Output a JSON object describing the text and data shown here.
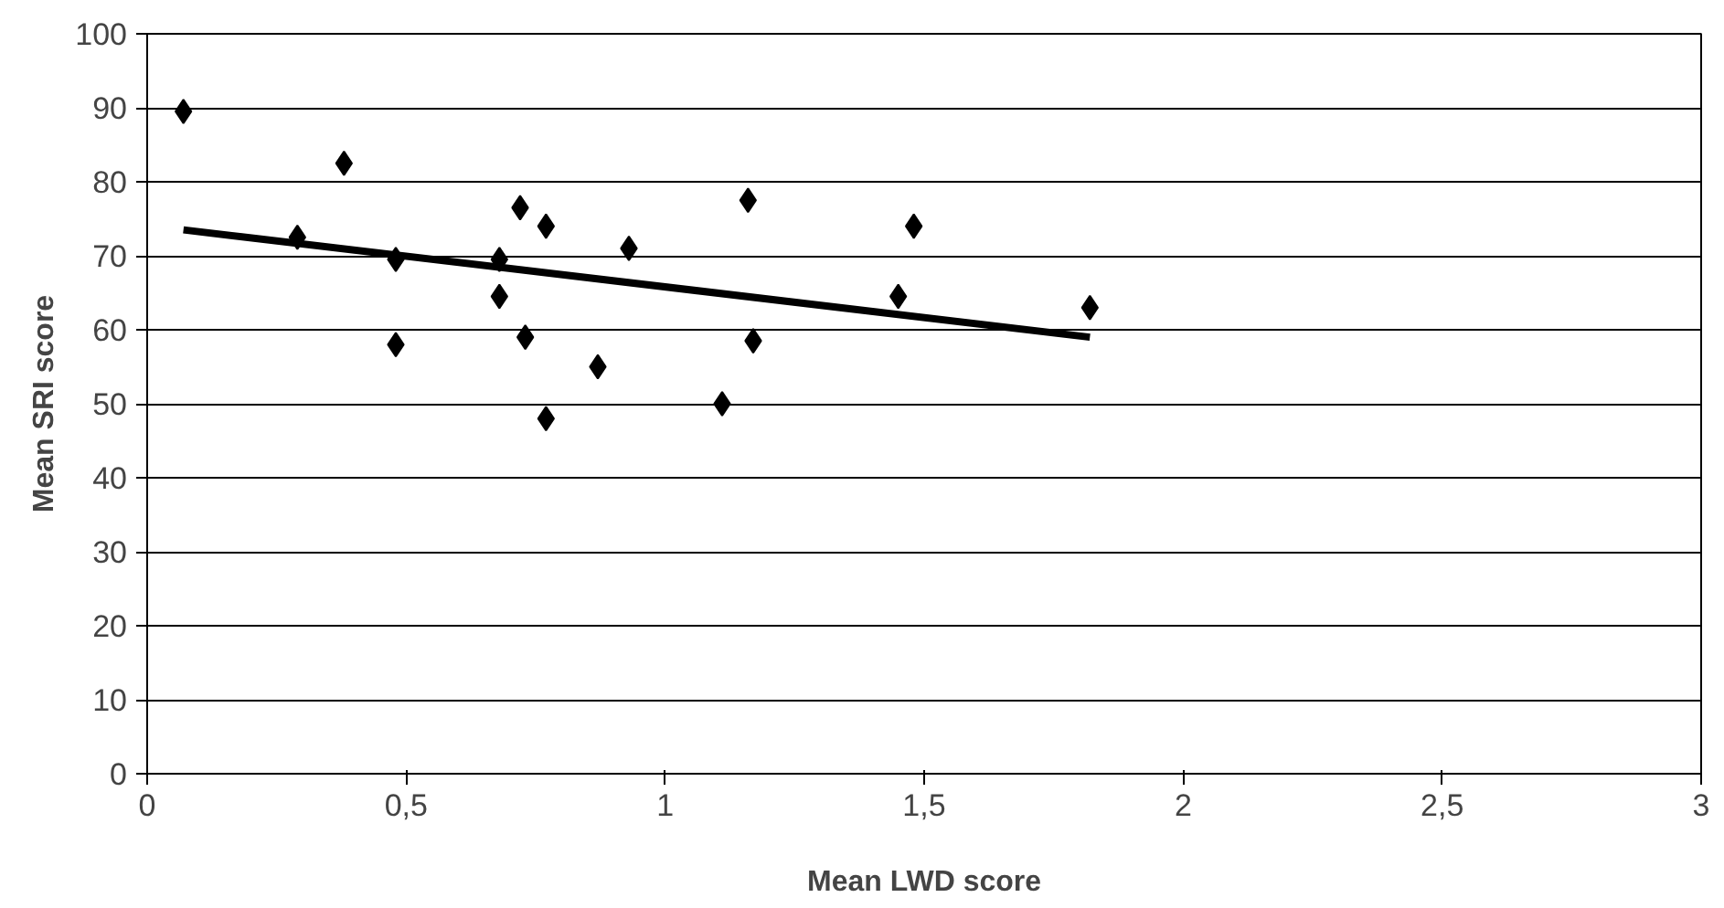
{
  "chart_data": {
    "type": "scatter",
    "xlabel": "Mean LWD score",
    "ylabel": "Mean SRI score",
    "xlim": [
      0,
      3
    ],
    "xticks": [
      0,
      {
        "value": 0.5,
        "label": "0,5"
      },
      1,
      {
        "value": 1.5,
        "label": "1,5"
      },
      2,
      {
        "value": 2.5,
        "label": "2,5"
      },
      3
    ],
    "ylim": [
      0,
      100
    ],
    "yticks": [
      0,
      10,
      20,
      30,
      40,
      50,
      60,
      70,
      80,
      90,
      100
    ],
    "grid": "y",
    "series": [
      {
        "marker": "diamond",
        "color": "#000000",
        "x": [
          0.07,
          0.29,
          0.38,
          0.48,
          0.48,
          0.68,
          0.68,
          0.72,
          0.73,
          0.77,
          0.77,
          0.87,
          0.93,
          1.11,
          1.16,
          1.17,
          1.45,
          1.48,
          1.82
        ],
        "values": [
          89.5,
          72.5,
          82.5,
          69.5,
          58,
          69.5,
          64.5,
          76.5,
          59,
          74,
          48,
          55,
          71,
          50,
          77.5,
          58.5,
          64.5,
          74,
          63
        ]
      },
      {
        "type": "line",
        "marker": "none",
        "color": "#000000",
        "x": [
          0.07,
          1.82
        ],
        "values": [
          73.5,
          59
        ]
      }
    ]
  }
}
